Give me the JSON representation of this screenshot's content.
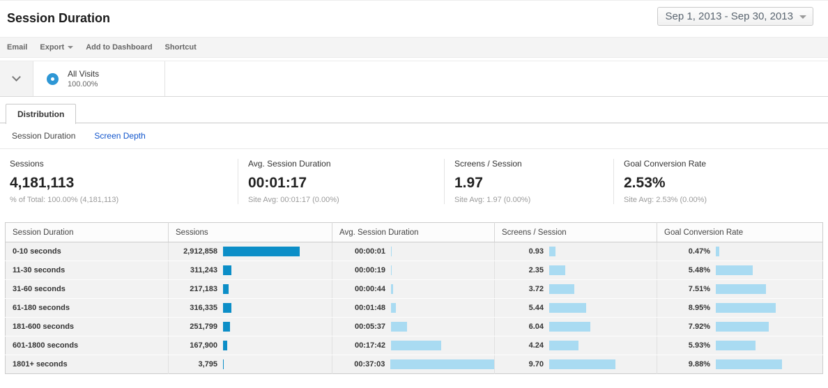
{
  "page": {
    "title": "Session Duration"
  },
  "date_range": {
    "label": "Sep 1, 2013 - Sep 30, 2013"
  },
  "toolbar": {
    "email": "Email",
    "export": "Export",
    "add_to_dashboard": "Add to Dashboard",
    "shortcut": "Shortcut"
  },
  "segment": {
    "name": "All Visits",
    "percent": "100.00%"
  },
  "tabs": {
    "distribution": "Distribution"
  },
  "subnav": {
    "items": [
      {
        "label": "Session Duration",
        "active": true
      },
      {
        "label": "Screen Depth",
        "active": false
      }
    ]
  },
  "metrics": [
    {
      "label": "Sessions",
      "value": "4,181,113",
      "subtext": "% of Total: 100.00% (4,181,113)"
    },
    {
      "label": "Avg. Session Duration",
      "value": "00:01:17",
      "subtext": "Site Avg: 00:01:17 (0.00%)"
    },
    {
      "label": "Screens / Session",
      "value": "1.97",
      "subtext": "Site Avg: 1.97 (0.00%)"
    },
    {
      "label": "Goal Conversion Rate",
      "value": "2.53%",
      "subtext": "Site Avg: 2.53% (0.00%)"
    }
  ],
  "table": {
    "columns": [
      "Session Duration",
      "Sessions",
      "Avg. Session Duration",
      "Screens / Session",
      "Goal Conversion Rate"
    ],
    "rows": [
      {
        "duration": "0-10 seconds",
        "sessions": "2,912,858",
        "sessions_num": 2912858,
        "avg_duration": "00:00:01",
        "avg_seconds": 1,
        "screens": "0.93",
        "screens_num": 0.93,
        "goal": "0.47%",
        "goal_num": 0.47
      },
      {
        "duration": "11-30 seconds",
        "sessions": "311,243",
        "sessions_num": 311243,
        "avg_duration": "00:00:19",
        "avg_seconds": 19,
        "screens": "2.35",
        "screens_num": 2.35,
        "goal": "5.48%",
        "goal_num": 5.48
      },
      {
        "duration": "31-60 seconds",
        "sessions": "217,183",
        "sessions_num": 217183,
        "avg_duration": "00:00:44",
        "avg_seconds": 44,
        "screens": "3.72",
        "screens_num": 3.72,
        "goal": "7.51%",
        "goal_num": 7.51
      },
      {
        "duration": "61-180 seconds",
        "sessions": "316,335",
        "sessions_num": 316335,
        "avg_duration": "00:01:48",
        "avg_seconds": 108,
        "screens": "5.44",
        "screens_num": 5.44,
        "goal": "8.95%",
        "goal_num": 8.95
      },
      {
        "duration": "181-600 seconds",
        "sessions": "251,799",
        "sessions_num": 251799,
        "avg_duration": "00:05:37",
        "avg_seconds": 337,
        "screens": "6.04",
        "screens_num": 6.04,
        "goal": "7.92%",
        "goal_num": 7.92
      },
      {
        "duration": "601-1800 seconds",
        "sessions": "167,900",
        "sessions_num": 167900,
        "avg_duration": "00:17:42",
        "avg_seconds": 1062,
        "screens": "4.24",
        "screens_num": 4.24,
        "goal": "5.93%",
        "goal_num": 5.93
      },
      {
        "duration": "1801+ seconds",
        "sessions": "3,795",
        "sessions_num": 3795,
        "avg_duration": "00:37:03",
        "avg_seconds": 2223,
        "screens": "9.70",
        "screens_num": 9.7,
        "goal": "9.88%",
        "goal_num": 9.88
      }
    ]
  },
  "colors": {
    "bar_dark": "#0c8ec7",
    "bar_light": "#a9dbf2",
    "link": "#1155cc",
    "segment_ring": "#2e97d5"
  }
}
